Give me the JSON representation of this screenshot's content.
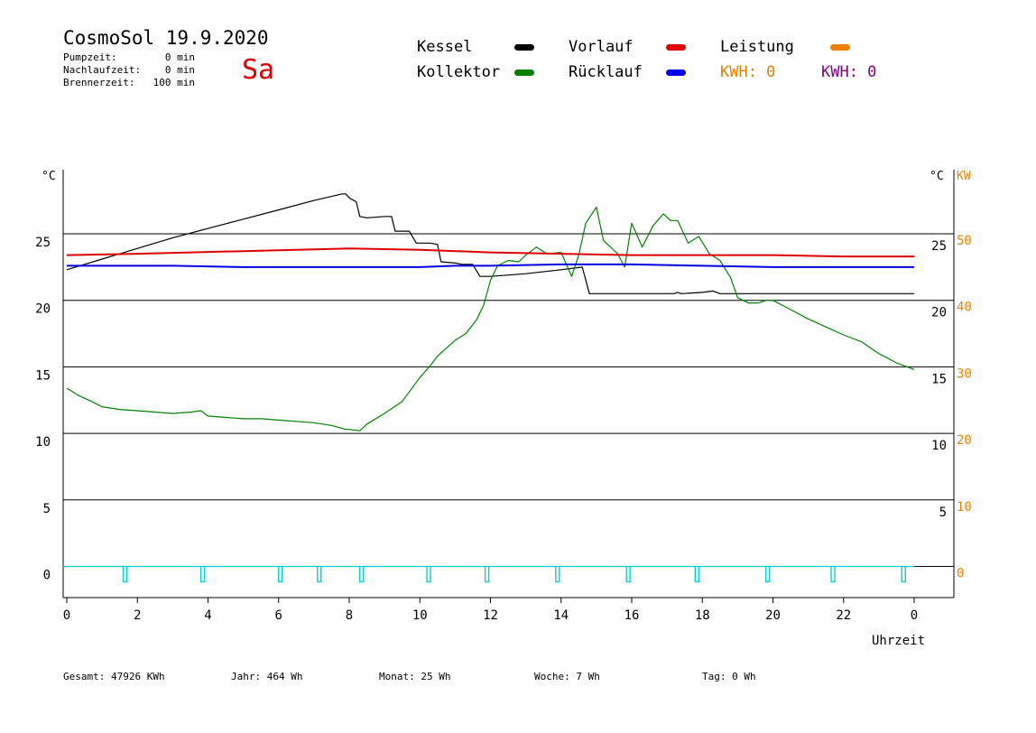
{
  "header": {
    "title": "CosmoSol 19.9.2020",
    "weekday": "Sa",
    "info": [
      {
        "label": "Pumpzeit:",
        "value": "0 min"
      },
      {
        "label": "Nachlaufzeit:",
        "value": "0 min"
      },
      {
        "label": "Brennerzeit:",
        "value": "100 min"
      }
    ]
  },
  "legend": {
    "kessel": {
      "label": "Kessel",
      "color": "#000000"
    },
    "kollektor": {
      "label": "Kollektor",
      "color": "#008000"
    },
    "vorlauf": {
      "label": "Vorlauf",
      "color": "#e00000"
    },
    "ruecklauf": {
      "label": "Rücklauf",
      "color": "#0000e0"
    },
    "leistung": {
      "label": "Leistung",
      "color": "#f08000"
    },
    "kwh_orange": "KWH: 0",
    "kwh_purple": "KWH: 0"
  },
  "footer": [
    {
      "label": "Gesamt:",
      "value": "47926 KWh"
    },
    {
      "label": "Jahr:",
      "value": "464 Wh"
    },
    {
      "label": "Monat:",
      "value": "25 Wh"
    },
    {
      "label": "Woche:",
      "value": "7 Wh"
    },
    {
      "label": "Tag:",
      "value": "0 Wh"
    }
  ],
  "chart_data": {
    "type": "line",
    "xlabel": "Uhrzeit",
    "ylabel_left": "°C",
    "ylabel_right": "°C",
    "ylabel_right2": "KW",
    "x_ticks": [
      "0",
      "2",
      "4",
      "6",
      "8",
      "10",
      "12",
      "14",
      "16",
      "18",
      "20",
      "22",
      "0"
    ],
    "y_ticks_left": [
      "0",
      "5",
      "10",
      "15",
      "20",
      "25"
    ],
    "y_ticks_right": [
      "5",
      "10",
      "15",
      "20",
      "25"
    ],
    "y_ticks_kw": [
      "0",
      "10",
      "20",
      "30",
      "40",
      "50"
    ],
    "xlim": [
      0,
      24
    ],
    "ylim": [
      -2.5,
      29
    ],
    "grid": true,
    "colors": {
      "kw_axis": "#f08000",
      "pump": "#00d0d0"
    },
    "series": [
      {
        "name": "Kessel",
        "color": "#000000",
        "points": [
          [
            0,
            22.3
          ],
          [
            1,
            23.1
          ],
          [
            2,
            23.9
          ],
          [
            3,
            24.7
          ],
          [
            4,
            25.4
          ],
          [
            5,
            26.1
          ],
          [
            6,
            26.8
          ],
          [
            7,
            27.5
          ],
          [
            7.8,
            28
          ],
          [
            7.9,
            28
          ],
          [
            8,
            27.7
          ],
          [
            8.2,
            27.4
          ],
          [
            8.3,
            26.3
          ],
          [
            8.5,
            26.2
          ],
          [
            9,
            26.3
          ],
          [
            9.2,
            26.3
          ],
          [
            9.3,
            25.2
          ],
          [
            9.7,
            25.2
          ],
          [
            9.9,
            24.3
          ],
          [
            10.3,
            24.3
          ],
          [
            10.5,
            24.2
          ],
          [
            10.6,
            22.9
          ],
          [
            11,
            22.8
          ],
          [
            11.2,
            22.7
          ],
          [
            11.5,
            22.7
          ],
          [
            11.7,
            21.8
          ],
          [
            12,
            21.8
          ],
          [
            13,
            22
          ],
          [
            14,
            22.3
          ],
          [
            14.6,
            22.5
          ],
          [
            14.8,
            20.5
          ],
          [
            15,
            20.5
          ],
          [
            16,
            20.5
          ],
          [
            17.2,
            20.5
          ],
          [
            17.3,
            20.6
          ],
          [
            17.4,
            20.5
          ],
          [
            18,
            20.6
          ],
          [
            18.3,
            20.7
          ],
          [
            18.5,
            20.5
          ],
          [
            20,
            20.5
          ],
          [
            22,
            20.5
          ],
          [
            24,
            20.5
          ]
        ]
      },
      {
        "name": "Kollektor",
        "color": "#008000",
        "points": [
          [
            0,
            13.4
          ],
          [
            0.3,
            12.9
          ],
          [
            0.7,
            12.4
          ],
          [
            1,
            12
          ],
          [
            1.5,
            11.8
          ],
          [
            2,
            11.7
          ],
          [
            2.5,
            11.6
          ],
          [
            3,
            11.5
          ],
          [
            3.5,
            11.6
          ],
          [
            3.8,
            11.7
          ],
          [
            4,
            11.3
          ],
          [
            4.5,
            11.2
          ],
          [
            5,
            11.1
          ],
          [
            5.5,
            11.1
          ],
          [
            6,
            11
          ],
          [
            6.5,
            10.9
          ],
          [
            7,
            10.8
          ],
          [
            7.5,
            10.6
          ],
          [
            7.9,
            10.3
          ],
          [
            8,
            10.3
          ],
          [
            8.3,
            10.2
          ],
          [
            8.5,
            10.7
          ],
          [
            9,
            11.5
          ],
          [
            9.5,
            12.4
          ],
          [
            10,
            14.2
          ],
          [
            10.3,
            15.1
          ],
          [
            10.5,
            15.8
          ],
          [
            11,
            17
          ],
          [
            11.3,
            17.5
          ],
          [
            11.6,
            18.5
          ],
          [
            11.8,
            19.6
          ],
          [
            12,
            21.5
          ],
          [
            12.2,
            22.6
          ],
          [
            12.5,
            23
          ],
          [
            12.8,
            22.9
          ],
          [
            13,
            23.4
          ],
          [
            13.3,
            24
          ],
          [
            13.6,
            23.5
          ],
          [
            14,
            23.6
          ],
          [
            14.3,
            21.8
          ],
          [
            14.5,
            23.4
          ],
          [
            14.7,
            25.8
          ],
          [
            15,
            27
          ],
          [
            15.2,
            24.5
          ],
          [
            15.4,
            24
          ],
          [
            15.6,
            23.5
          ],
          [
            15.8,
            22.5
          ],
          [
            16,
            25.8
          ],
          [
            16.3,
            24
          ],
          [
            16.6,
            25.6
          ],
          [
            16.9,
            26.5
          ],
          [
            17.1,
            26
          ],
          [
            17.3,
            26
          ],
          [
            17.6,
            24.3
          ],
          [
            17.9,
            24.8
          ],
          [
            18.2,
            23.5
          ],
          [
            18.5,
            23
          ],
          [
            18.8,
            21.7
          ],
          [
            19,
            20.2
          ],
          [
            19.3,
            19.8
          ],
          [
            19.6,
            19.8
          ],
          [
            19.8,
            20
          ],
          [
            20,
            20
          ],
          [
            20.5,
            19.3
          ],
          [
            21,
            18.6
          ],
          [
            21.5,
            18
          ],
          [
            22,
            17.4
          ],
          [
            22.5,
            16.9
          ],
          [
            23,
            16
          ],
          [
            23.5,
            15.3
          ],
          [
            24,
            14.8
          ]
        ]
      },
      {
        "name": "Vorlauf",
        "color": "#e00000",
        "points": [
          [
            0,
            23.4
          ],
          [
            2,
            23.5
          ],
          [
            5,
            23.7
          ],
          [
            8,
            23.9
          ],
          [
            10,
            23.8
          ],
          [
            12,
            23.6
          ],
          [
            14,
            23.5
          ],
          [
            16,
            23.4
          ],
          [
            18,
            23.4
          ],
          [
            20,
            23.4
          ],
          [
            22,
            23.3
          ],
          [
            24,
            23.3
          ]
        ]
      },
      {
        "name": "Rücklauf",
        "color": "#0000e0",
        "points": [
          [
            0,
            22.6
          ],
          [
            3,
            22.6
          ],
          [
            5,
            22.5
          ],
          [
            8,
            22.5
          ],
          [
            10,
            22.5
          ],
          [
            11,
            22.6
          ],
          [
            12,
            22.6
          ],
          [
            14,
            22.7
          ],
          [
            16,
            22.7
          ],
          [
            18,
            22.6
          ],
          [
            20,
            22.5
          ],
          [
            22,
            22.5
          ],
          [
            24,
            22.5
          ]
        ]
      }
    ],
    "pump_pulses": [
      1.65,
      3.85,
      6.05,
      7.15,
      8.35,
      10.25,
      11.9,
      13.9,
      15.9,
      17.85,
      19.85,
      21.7,
      23.7
    ]
  }
}
